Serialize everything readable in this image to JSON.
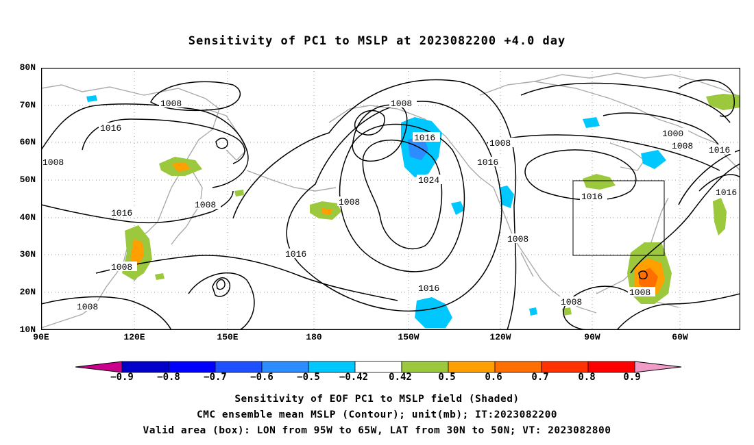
{
  "title": "Sensitivity of PC1 to MSLP at 2023082200 +4.0 day",
  "lat_labels": [
    "80N",
    "70N",
    "60N",
    "50N",
    "40N",
    "30N",
    "20N",
    "10N"
  ],
  "lon_labels": [
    "90E",
    "120E",
    "150E",
    "180",
    "150W",
    "120W",
    "90W",
    "60W"
  ],
  "contour_labels": {
    "c1008_a": "1008",
    "c1016_a": "1016",
    "c1008_b": "1008",
    "c1016_b": "1016",
    "c1008_c": "1008",
    "c1008_d": "1008",
    "c1008_e": "1008",
    "c1016_c": "1016",
    "c1024": "1024",
    "c1016_d": "1016",
    "c1016_e": "1016",
    "c1016_f": "1016",
    "c1008_f": "1008",
    "c1008_g": "1008",
    "c1016_g": "1016",
    "c1000": "1000",
    "c1008_h": "1008",
    "c1016_h": "1016",
    "c1016_i": "1016",
    "c1008_i": "1008",
    "c1008_j": "1008",
    "c1008_k": "1008",
    "c1008_l": "1008"
  },
  "colorbar": {
    "labels": [
      "−0.9",
      "−0.8",
      "−0.7",
      "−0.6",
      "−0.5",
      "−0.42",
      "0.42",
      "0.5",
      "0.6",
      "0.7",
      "0.8",
      "0.9"
    ],
    "colors": [
      "#c8008c",
      "#0000c8",
      "#0000ff",
      "#1e50ff",
      "#2d8cff",
      "#00c8ff",
      "#ffffff",
      "#9bc83c",
      "#ffa000",
      "#ff6e00",
      "#ff3200",
      "#ff0000",
      "#f09bc8"
    ]
  },
  "captions": {
    "line1": "Sensitivity of EOF PC1 to MSLP field (Shaded)",
    "line2": "CMC ensemble mean MSLP (Contour); unit(mb); IT:2023082200",
    "line3": "Valid area (box): LON from 95W to 65W, LAT from 30N to 50N; VT: 2023082800"
  },
  "valid_area": {
    "lon_min": -95,
    "lon_max": -65,
    "lat_min": 30,
    "lat_max": 50
  }
}
